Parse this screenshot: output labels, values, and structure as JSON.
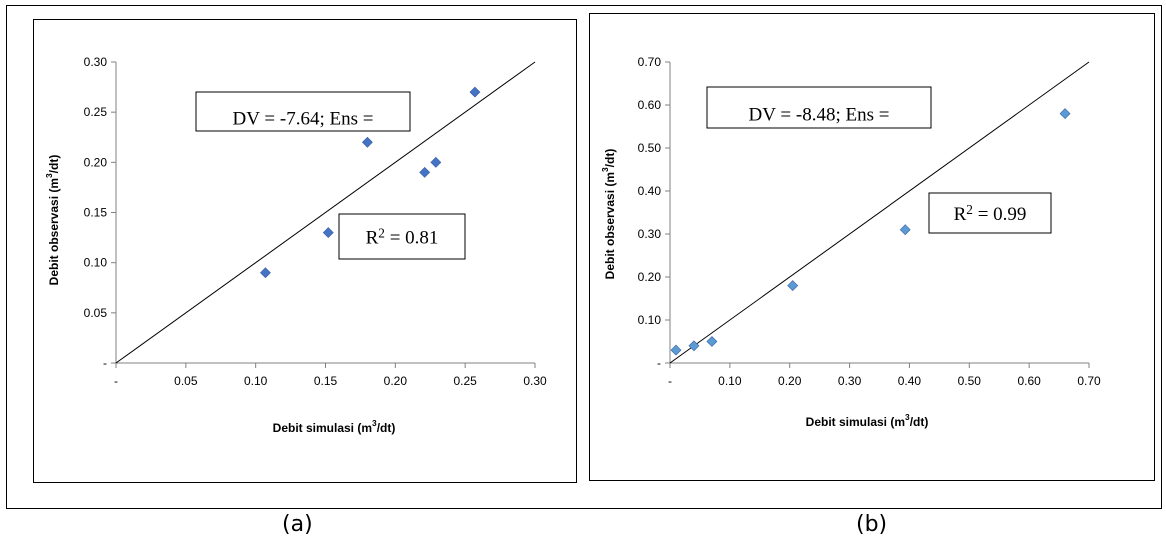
{
  "captions": [
    "(a)",
    "(b)"
  ],
  "chart_data": [
    {
      "type": "scatter",
      "xlabel_parts": [
        "Debit simulasi (m",
        "3",
        "/dt)"
      ],
      "ylabel_parts": [
        "Debit observasi (m",
        "3",
        "/dt)"
      ],
      "xlim": [
        0,
        0.3
      ],
      "ylim": [
        0,
        0.3
      ],
      "x_ticks": [
        "-",
        "0.05",
        "0.10",
        "0.15",
        "0.20",
        "0.25",
        "0.30"
      ],
      "y_ticks": [
        "-",
        "0.05",
        "0.10",
        "0.15",
        "0.20",
        "0.25",
        "0.30"
      ],
      "points": [
        {
          "x": 0.107,
          "y": 0.09
        },
        {
          "x": 0.152,
          "y": 0.13
        },
        {
          "x": 0.18,
          "y": 0.22
        },
        {
          "x": 0.221,
          "y": 0.19
        },
        {
          "x": 0.229,
          "y": 0.2
        },
        {
          "x": 0.257,
          "y": 0.27
        }
      ],
      "line": {
        "x": [
          0,
          0.3
        ],
        "y": [
          0,
          0.3
        ]
      },
      "annotations": [
        {
          "parts": [
            "DV = -7.64; Ens ="
          ]
        },
        {
          "parts": [
            "R",
            "2",
            " = 0.81"
          ]
        }
      ],
      "marker_color": "#4472C4",
      "grid": false
    },
    {
      "type": "scatter",
      "xlabel_parts": [
        "Debit simulasi  (m",
        "3",
        "/dt)"
      ],
      "ylabel_parts": [
        "Debit observasi (m",
        "3",
        "/dt)"
      ],
      "xlim": [
        0,
        0.7
      ],
      "ylim": [
        0,
        0.7
      ],
      "x_ticks": [
        "-",
        "0.10",
        "0.20",
        "0.30",
        "0.40",
        "0.50",
        "0.60",
        "0.70"
      ],
      "y_ticks": [
        "-",
        "0.10",
        "0.20",
        "0.30",
        "0.40",
        "0.50",
        "0.60",
        "0.70"
      ],
      "points": [
        {
          "x": 0.01,
          "y": 0.03
        },
        {
          "x": 0.04,
          "y": 0.04
        },
        {
          "x": 0.07,
          "y": 0.05
        },
        {
          "x": 0.205,
          "y": 0.18
        },
        {
          "x": 0.393,
          "y": 0.31
        },
        {
          "x": 0.66,
          "y": 0.58
        }
      ],
      "line": {
        "x": [
          0,
          0.7
        ],
        "y": [
          0,
          0.7
        ]
      },
      "annotations": [
        {
          "parts": [
            "DV = -8.48; Ens ="
          ]
        },
        {
          "parts": [
            "R",
            "2",
            " = 0.99"
          ]
        }
      ],
      "marker_color": "#5B9BD5",
      "grid": false
    }
  ]
}
